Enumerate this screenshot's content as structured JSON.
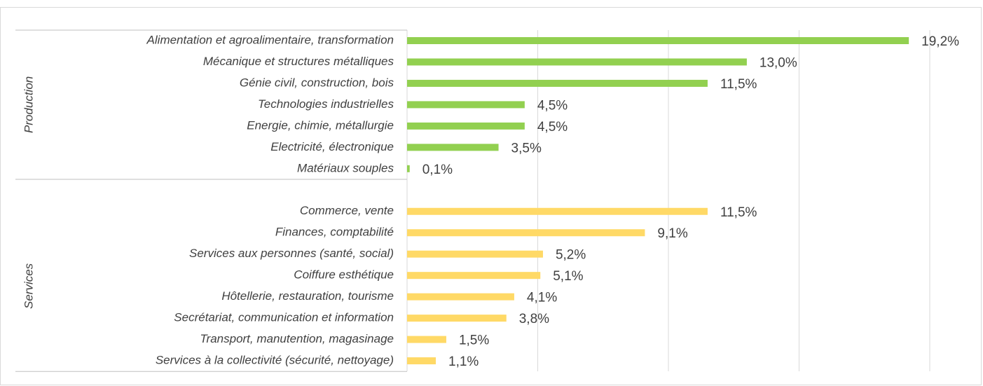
{
  "chart_data": {
    "type": "bar",
    "xlim": [
      0,
      20
    ],
    "xticks": [
      5,
      10,
      15,
      20
    ],
    "grid": true,
    "groups": [
      {
        "name": "Production",
        "color": "#92d050",
        "categories": [
          "Alimentation et agroalimentaire, transformation",
          "Mécanique et structures métalliques",
          "Génie civil, construction, bois",
          "Technologies industrielles",
          "Energie, chimie, métallurgie",
          "Electricité, électronique",
          "Matériaux souples"
        ],
        "values": [
          19.2,
          13.0,
          11.5,
          4.5,
          4.5,
          3.5,
          0.1
        ],
        "value_labels": [
          "19,2%",
          "13,0%",
          "11,5%",
          "4,5%",
          "4,5%",
          "3,5%",
          "0,1%"
        ]
      },
      {
        "name": "Services",
        "color": "#ffd966",
        "categories": [
          "Commerce, vente",
          "Finances, comptabilité",
          "Services aux personnes (santé, social)",
          "Coiffure esthétique",
          "Hôtellerie, restauration, tourisme",
          "Secrétariat, communication et information",
          "Transport, manutention, magasinage",
          "Services à la collectivité (sécurité, nettoyage)"
        ],
        "values": [
          11.5,
          9.1,
          5.2,
          5.1,
          4.1,
          3.8,
          1.5,
          1.1
        ],
        "value_labels": [
          "11,5%",
          "9,1%",
          "5,2%",
          "5,1%",
          "4,1%",
          "3,8%",
          "1,5%",
          "1,1%"
        ]
      }
    ]
  }
}
